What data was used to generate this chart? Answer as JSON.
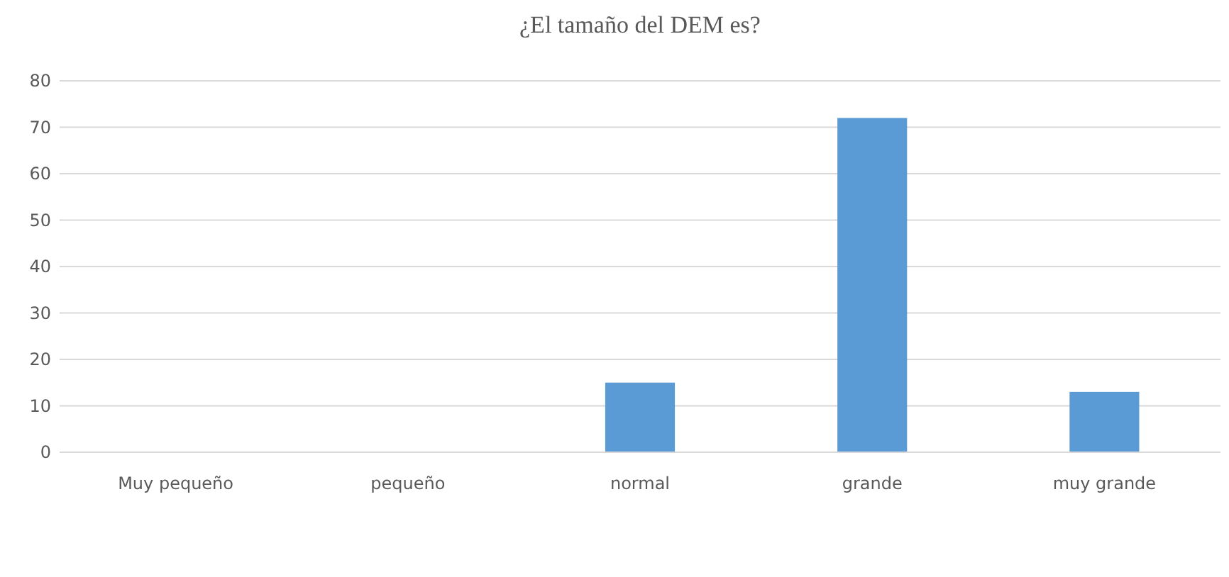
{
  "chart_data": {
    "type": "bar",
    "title": "¿El tamaño del DEM es?",
    "categories": [
      "Muy pequeño",
      "pequeño",
      "normal",
      "grande",
      "muy grande"
    ],
    "values": [
      0,
      0,
      15,
      72,
      13
    ],
    "color": "#5b9bd5",
    "ylim": [
      0,
      80
    ],
    "yticks": [
      0,
      10,
      20,
      30,
      40,
      50,
      60,
      70,
      80
    ],
    "grid": "y"
  }
}
